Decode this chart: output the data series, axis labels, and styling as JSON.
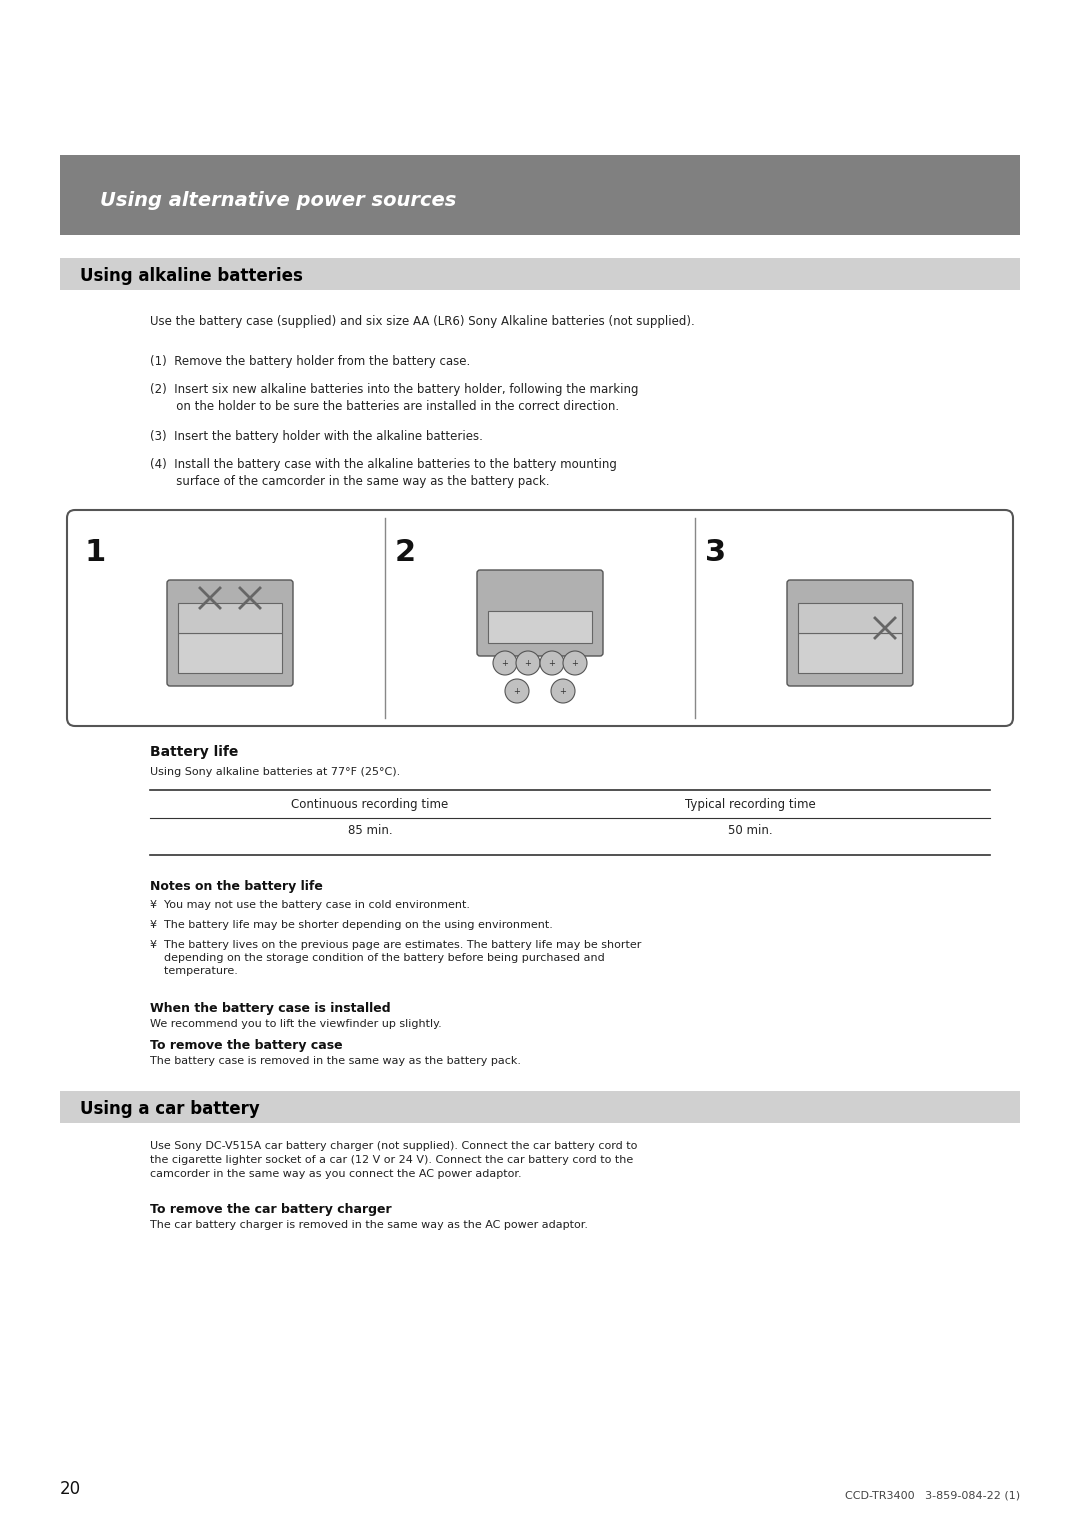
{
  "page_bg": "#ffffff",
  "header_bg": "#808080",
  "header_text": "Using alternative power sources",
  "header_text_color": "#ffffff",
  "section1_bg": "#d0d0d0",
  "section1_text": "Using alkaline batteries",
  "section2_bg": "#d0d0d0",
  "section2_text": "Using a car battery",
  "body_text_color": "#000000",
  "intro_text": "Use the battery case (supplied) and six size AA (LR6) Sony Alkaline batteries (not supplied).",
  "steps": [
    "(1) Remove the battery holder from the battery case.",
    "(2) Insert six new alkaline batteries into the battery holder, following the marking\n      on the holder to be sure the batteries are installed in the correct direction.",
    "(3) Insert the battery holder with the alkaline batteries.",
    "(4) Install the battery case with the alkaline batteries to the battery mounting\n      surface of the camcorder in the same way as the battery pack."
  ],
  "battery_life_title": "Battery life",
  "battery_life_subtitle": "Using Sony alkaline batteries at 77°F (25°C).",
  "table_col1_header": "Continuous recording time",
  "table_col2_header": "Typical recording time",
  "table_col1_val": "85 min.",
  "table_col2_val": "50 min.",
  "notes_title": "Notes on the battery life",
  "notes": [
    "¥  You may not use the battery case in cold environment.",
    "¥  The battery life may be shorter depending on the using environment.",
    "¥  The battery lives on the previous page are estimates. The battery life may be shorter\n    depending on the storage condition of the battery before being purchased and\n    temperature."
  ],
  "when_title": "When the battery case is installed",
  "when_text": "We recommend you to lift the viewfinder up slightly.",
  "remove_title": "To remove the battery case",
  "remove_text": "The battery case is removed in the same way as the battery pack.",
  "car_battery_text": "Use Sony DC-V515A car battery charger (not supplied). Connect the car battery cord to\nthe cigarette lighter socket of a car (12 V or 24 V). Connect the car battery cord to the\ncamcorder in the same way as you connect the AC power adaptor.",
  "car_remove_title": "To remove the car battery charger",
  "car_remove_text": "The car battery charger is removed in the same way as the AC power adaptor.",
  "page_number": "20",
  "footer_text": "CCD-TR3400   3-859-084-22 (1)"
}
